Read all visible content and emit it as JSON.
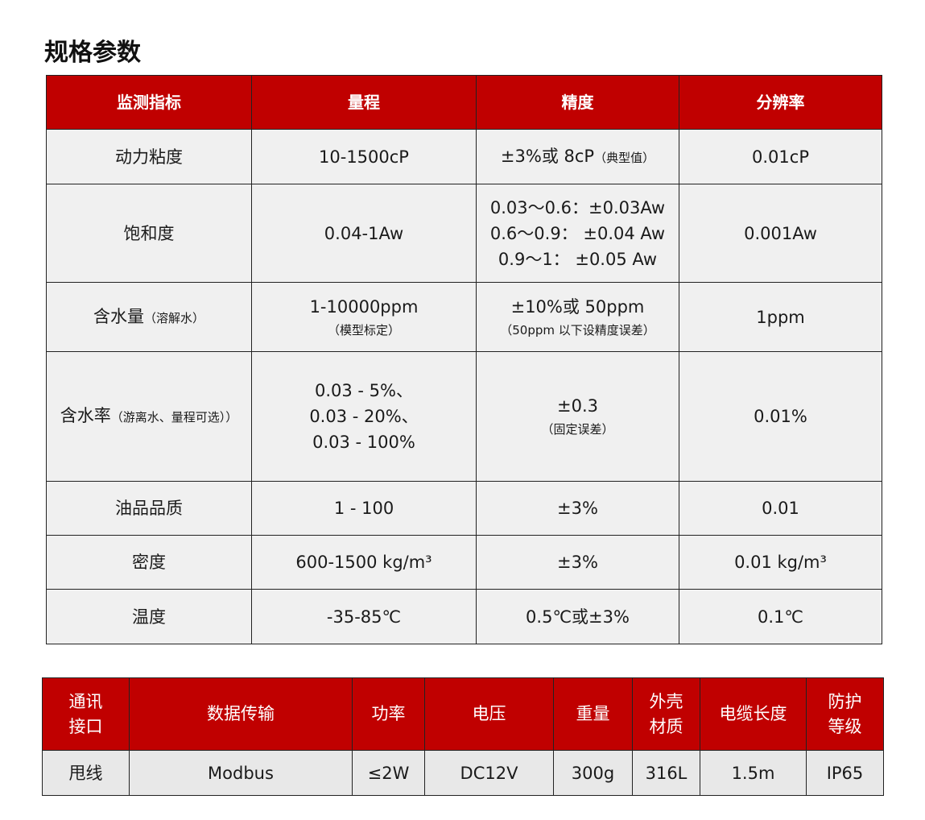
{
  "title": "规格参数",
  "spec_table": {
    "headers": [
      "监测指标",
      "量程",
      "精度",
      "分辨率"
    ],
    "rows": [
      {
        "metric": "动力粘度",
        "metric_note": "",
        "range": [
          "10-1500cP"
        ],
        "range_note": "",
        "accuracy": [
          "±3%或 8cP"
        ],
        "accuracy_note": "（典型值）",
        "resolution": "0.01cP"
      },
      {
        "metric": "饱和度",
        "metric_note": "",
        "range": [
          "0.04-1Aw"
        ],
        "range_note": "",
        "accuracy": [
          "0.03～0.6：±0.03Aw",
          "0.6～0.9： ±0.04 Aw",
          "0.9～1： ±0.05 Aw"
        ],
        "accuracy_note": "",
        "resolution": "0.001Aw"
      },
      {
        "metric": "含水量",
        "metric_note": "（溶解水）",
        "range": [
          "1-10000ppm"
        ],
        "range_note": "（模型标定）",
        "accuracy": [
          "±10%或 50ppm"
        ],
        "accuracy_note": "（50ppm 以下设精度误差）",
        "resolution": "1ppm"
      },
      {
        "metric": "含水率",
        "metric_note": "（游离水、量程可选））",
        "range": [
          "0.03 - 5%、",
          "0.03 - 20%、",
          "0.03 - 100%"
        ],
        "range_note": "",
        "accuracy": [
          "±0.3"
        ],
        "accuracy_note": "（固定误差）",
        "resolution": "0.01%"
      },
      {
        "metric": "油品品质",
        "metric_note": "",
        "range": [
          "1 - 100"
        ],
        "range_note": "",
        "accuracy": [
          "±3%"
        ],
        "accuracy_note": "",
        "resolution": "0.01"
      },
      {
        "metric": "密度",
        "metric_note": "",
        "range": [
          "600-1500 kg/m³"
        ],
        "range_note": "",
        "accuracy": [
          "±3%"
        ],
        "accuracy_note": "",
        "resolution": "0.01 kg/m³"
      },
      {
        "metric": "温度",
        "metric_note": "",
        "range": [
          "-35-85℃"
        ],
        "range_note": "",
        "accuracy": [
          "0.5℃或±3%"
        ],
        "accuracy_note": "",
        "resolution": "0.1℃"
      }
    ]
  },
  "hw_table": {
    "headers": [
      [
        "通讯",
        "接口"
      ],
      [
        "数据传输"
      ],
      [
        "功率"
      ],
      [
        "电压"
      ],
      [
        "重量"
      ],
      [
        "外壳",
        "材质"
      ],
      [
        "电缆长度"
      ],
      [
        "防护",
        "等级"
      ]
    ],
    "values": [
      "甩线",
      "Modbus",
      "≤2W",
      "DC12V",
      "300g",
      "316L",
      "1.5m",
      "IP65"
    ]
  },
  "colors": {
    "header_bg": "#c00000",
    "cell_bg": "#f0f0f0"
  }
}
